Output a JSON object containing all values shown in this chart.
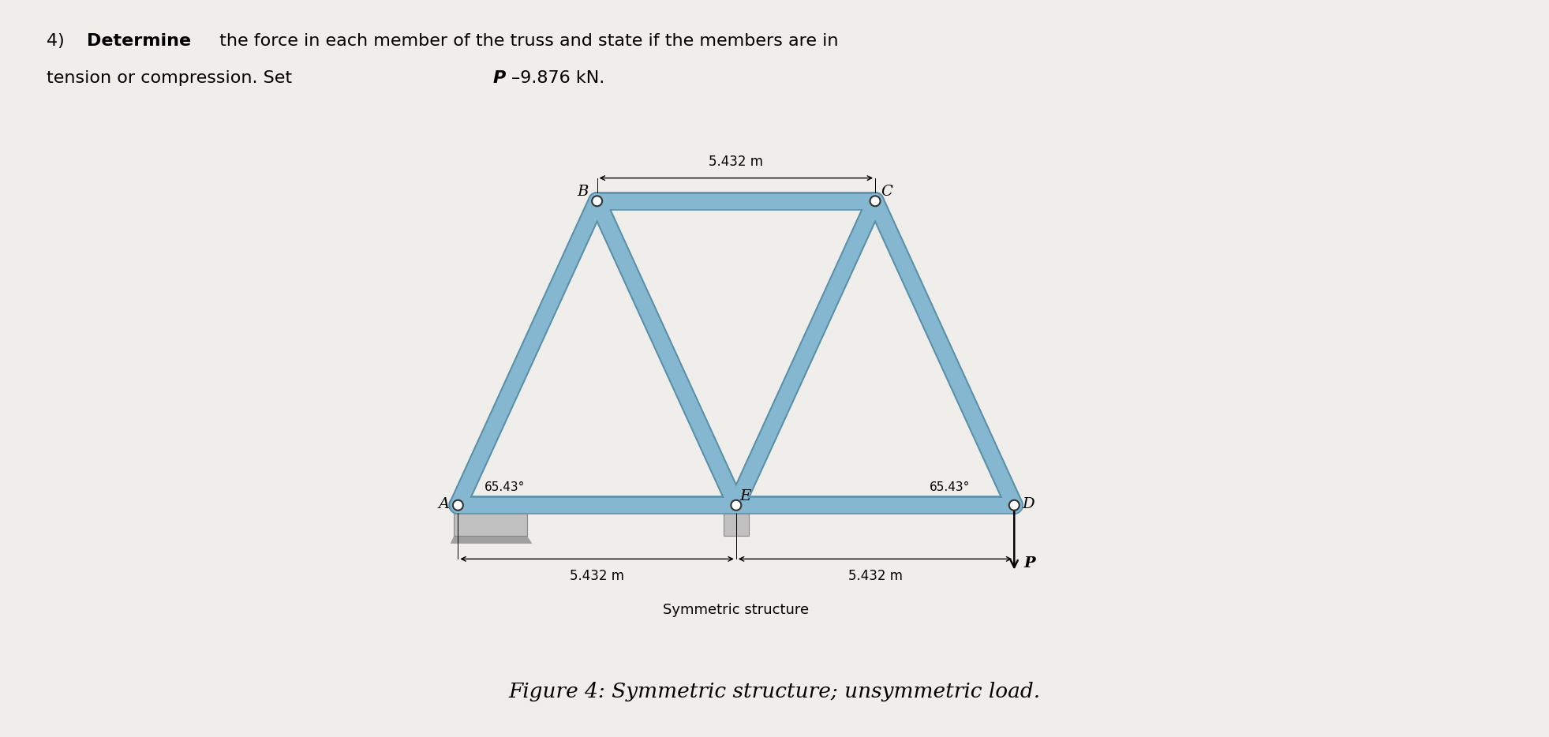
{
  "title_line1_num": "4) ",
  "title_bold": "Determine",
  "title_rest": " the force in each member of the truss and state if the members are in",
  "title_line2": "tension or compression. Set ",
  "title_p": "P",
  "title_val": "=9.876 kN.",
  "figure_caption": "Figure 4: Symmetric structure; unsymmetric load.",
  "symmetric_label": "Symmetric structure",
  "span_label": "5.432 m",
  "angle_label": "65.43°",
  "truss_color": "#85b8d0",
  "truss_edge_color": "#5a90aa",
  "truss_linewidth": 14,
  "page_color": "#f0eeea",
  "ground_color": "#b8b8b8",
  "P_label": "P",
  "arrow_color": "#111111"
}
